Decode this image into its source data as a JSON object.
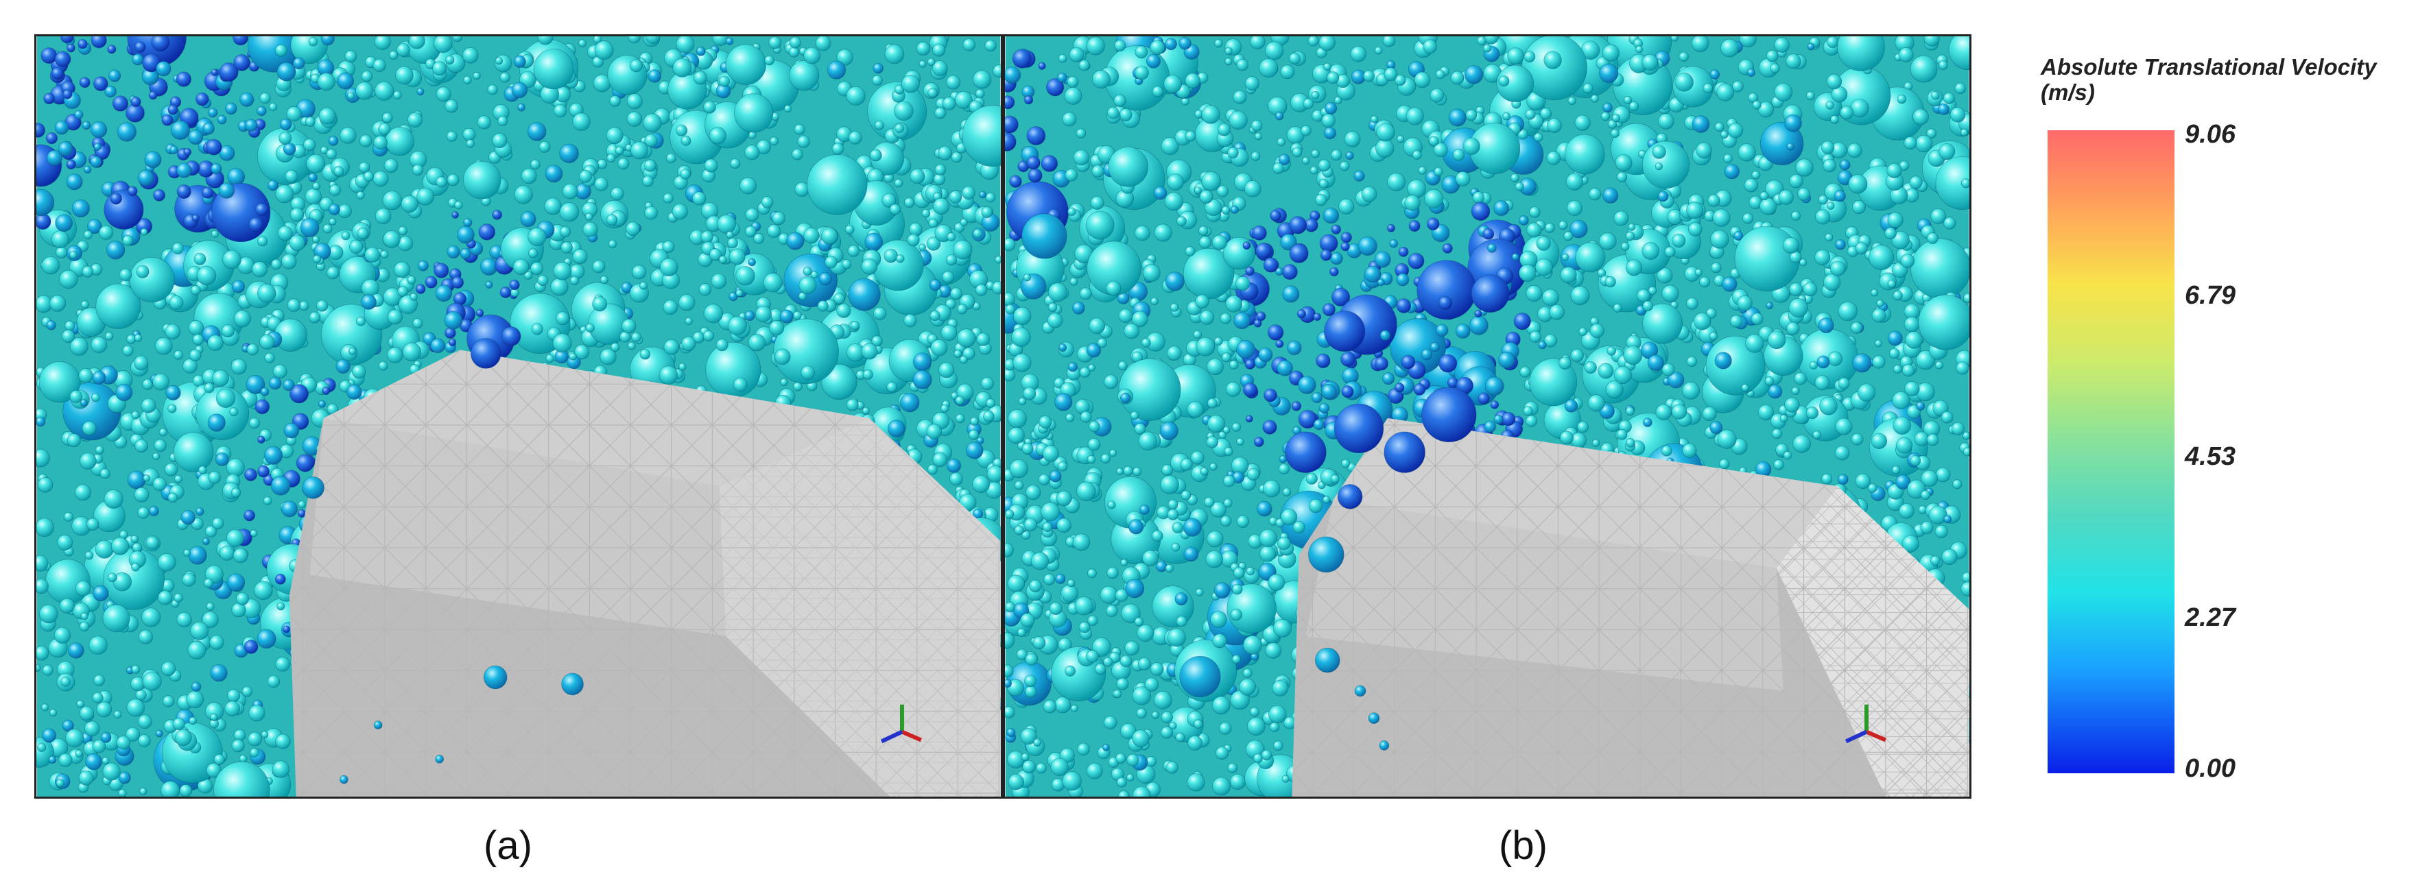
{
  "panels": [
    {
      "id": "a",
      "caption": "(a)"
    },
    {
      "id": "b",
      "caption": "(b)"
    }
  ],
  "legend": {
    "title_line1": "Absolute Translational Velocity",
    "title_line2": "(m/s)",
    "ticks": [
      "9.06",
      "6.79",
      "4.53",
      "2.27",
      "0.00"
    ],
    "colors": {
      "max": "#ff6a6a",
      "mid": "#52d9c2",
      "low": "#20e2e8",
      "min": "#0a1fe8"
    }
  },
  "icons": {
    "axis_triad": "xyz-axis-triad-icon"
  }
}
